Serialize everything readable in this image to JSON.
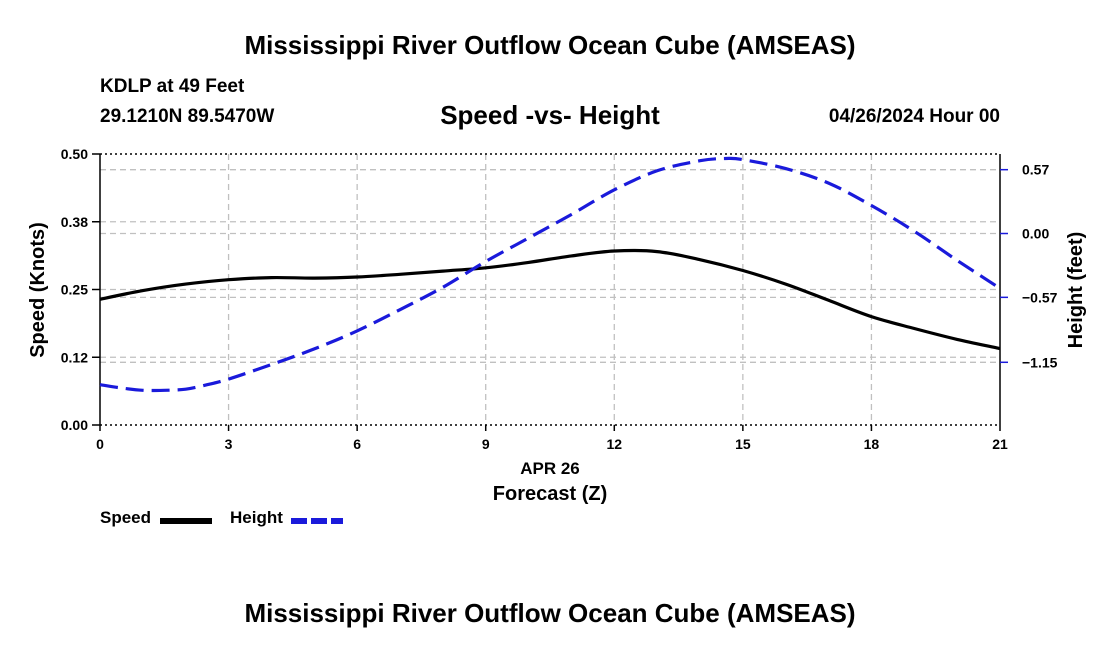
{
  "header": {
    "title": "Mississippi River Outflow Ocean Cube (AMSEAS)",
    "station": "KDLP at 49 Feet",
    "coords": "29.1210N  89.5470W",
    "subtitle": "Speed -vs- Height",
    "datetime": "04/26/2024 Hour 00"
  },
  "footer": {
    "title": "Mississippi River Outflow Ocean Cube (AMSEAS)"
  },
  "legend": {
    "speed_label": "Speed",
    "height_label": "Height"
  },
  "colors": {
    "speed": "#000000",
    "height": "#1a1adb",
    "grid": "#c0c0c0"
  },
  "chart_data": {
    "type": "line",
    "title": "Speed -vs- Height",
    "xlabel": "Forecast (Z)",
    "xsublabel": "APR 26",
    "ylabel": "Speed (Knots)",
    "y2label": "Height (feet)",
    "xlim": [
      0,
      21
    ],
    "ylim": [
      0,
      0.5
    ],
    "y2lim": [
      -1.71,
      0.71
    ],
    "xticks": [
      0,
      3,
      6,
      9,
      12,
      15,
      18,
      21
    ],
    "yticks": [
      0,
      0.125,
      0.25,
      0.375,
      0.5
    ],
    "yticklabels": [
      "0.00",
      "0.12",
      "0.25",
      "0.38",
      "0.50"
    ],
    "y2ticks": [
      -1.15,
      -0.57,
      0,
      0.57
    ],
    "y2ticklabels": [
      "−1.15",
      "−0.57",
      "0.00",
      "0.57"
    ],
    "grid": true,
    "series": [
      {
        "name": "Speed",
        "axis": "left",
        "style": "solid",
        "x": [
          0,
          1,
          2,
          3,
          4,
          5,
          6,
          7,
          8,
          9,
          10,
          11,
          12,
          13,
          14,
          15,
          16,
          17,
          18,
          19,
          20,
          21
        ],
        "values": [
          0.232,
          0.248,
          0.26,
          0.268,
          0.272,
          0.271,
          0.273,
          0.278,
          0.284,
          0.29,
          0.3,
          0.312,
          0.321,
          0.32,
          0.305,
          0.285,
          0.26,
          0.23,
          0.2,
          0.178,
          0.158,
          0.141
        ]
      },
      {
        "name": "Height",
        "axis": "right",
        "style": "dashed",
        "x": [
          0,
          0.5,
          1,
          1.5,
          2,
          2.5,
          3,
          4,
          5,
          6,
          7,
          8,
          9,
          10,
          11,
          12,
          13,
          14,
          14.6,
          15,
          16,
          17,
          18,
          19,
          20,
          21
        ],
        "values": [
          -1.35,
          -1.38,
          -1.4,
          -1.4,
          -1.39,
          -1.35,
          -1.3,
          -1.17,
          -1.03,
          -0.87,
          -0.68,
          -0.48,
          -0.25,
          -0.04,
          0.17,
          0.39,
          0.56,
          0.65,
          0.67,
          0.66,
          0.58,
          0.45,
          0.25,
          0.02,
          -0.24,
          -0.49
        ]
      }
    ]
  }
}
